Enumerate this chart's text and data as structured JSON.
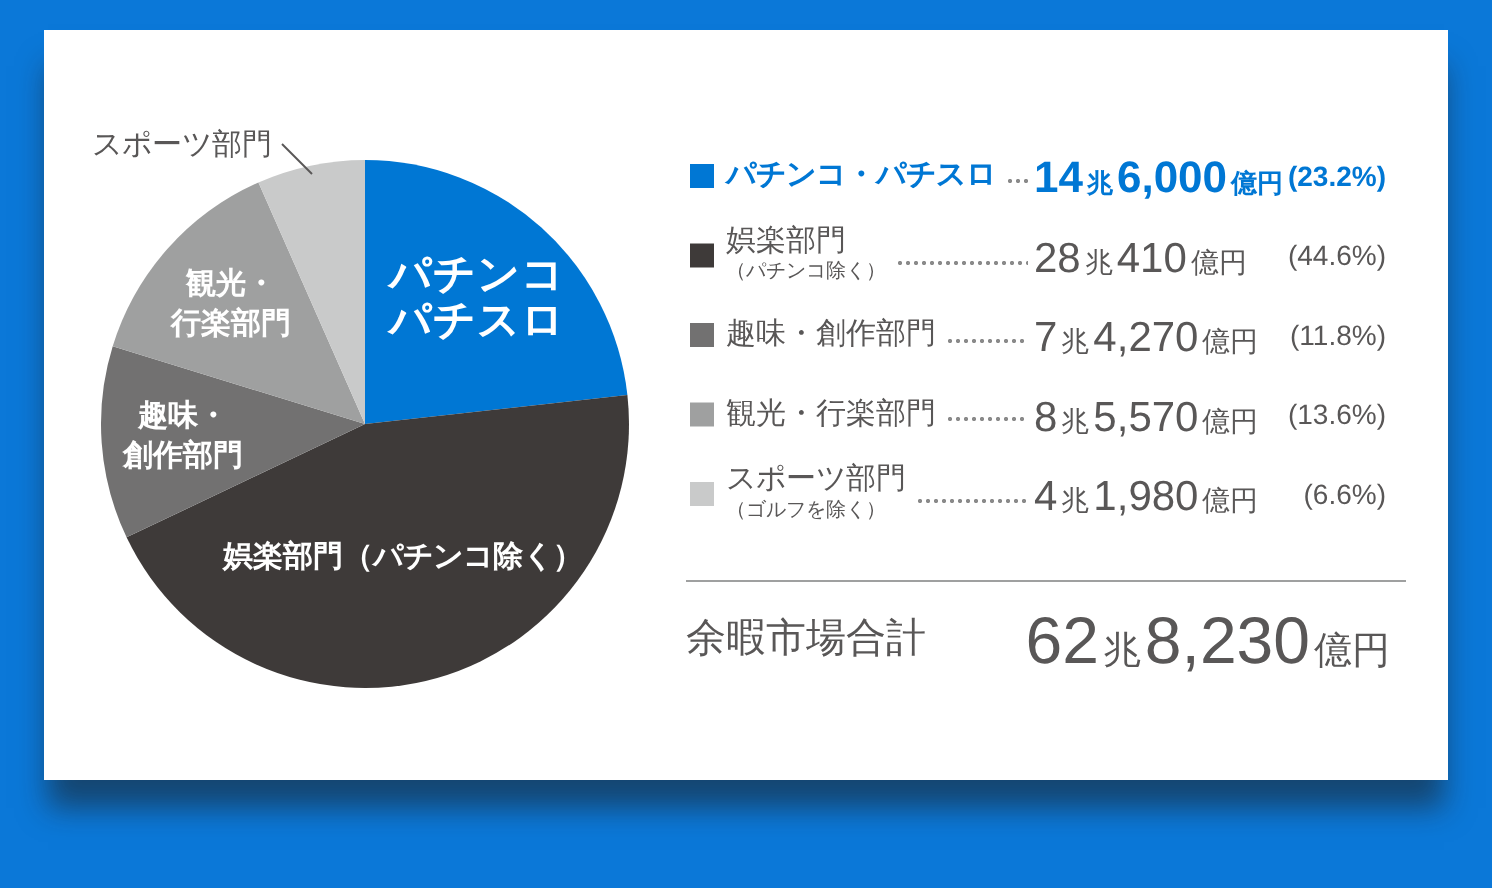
{
  "chart_data": {
    "type": "pie",
    "categories": [
      "パチンコ・パチスロ",
      "娯楽部門（パチンコ除く）",
      "趣味・創作部門",
      "観光・行楽部門",
      "スポーツ部門（ゴルフを除く）"
    ],
    "values": [
      23.2,
      44.6,
      11.8,
      13.6,
      6.6
    ],
    "colors": [
      "#0077d4",
      "#3e3a39",
      "#727171",
      "#9fa0a0",
      "#c9caca"
    ],
    "value_labels": [
      "14兆6,000億円 (23.2%)",
      "28兆410億円 (44.6%)",
      "7兆4,270億円 (11.8%)",
      "8兆5,570億円 (13.6%)",
      "4兆1,980億円 (6.6%)"
    ],
    "annotations": [
      "パチンコパチスロ",
      "娯楽部門（パチンコ除く）",
      "趣味・創作部門",
      "観光・行楽部門",
      "スポーツ部門",
      "余暇市場合計 62兆8,230億円"
    ],
    "legend": "right"
  }
}
